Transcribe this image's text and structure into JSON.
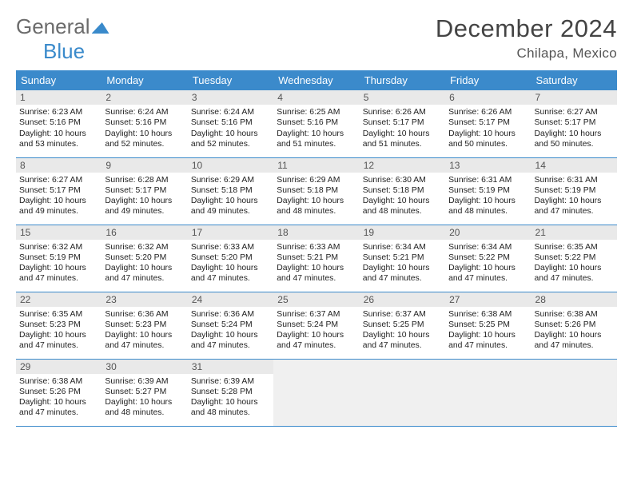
{
  "logo": {
    "line1": "General",
    "line2": "Blue"
  },
  "title": "December 2024",
  "location": "Chilapa, Mexico",
  "colors": {
    "header_bg": "#3b8acb",
    "header_text": "#ffffff",
    "daynum_bg": "#e9e9e9",
    "daynum_text": "#555555",
    "body_text": "#222222",
    "rule": "#3b8acb",
    "logo_gray": "#6b6b6b",
    "logo_blue": "#3a8acb",
    "empty_bg": "#f0f0f0",
    "page_bg": "#ffffff",
    "title_color": "#444444"
  },
  "typography": {
    "month_title_fontsize": 31,
    "location_fontsize": 17,
    "dayheader_fontsize": 13,
    "daynum_fontsize": 12,
    "body_fontsize": 10.4,
    "font_family": "Arial"
  },
  "day_headers": [
    "Sunday",
    "Monday",
    "Tuesday",
    "Wednesday",
    "Thursday",
    "Friday",
    "Saturday"
  ],
  "weeks": [
    [
      {
        "n": "1",
        "sunrise": "6:23 AM",
        "sunset": "5:16 PM",
        "daylight": "10 hours and 53 minutes."
      },
      {
        "n": "2",
        "sunrise": "6:24 AM",
        "sunset": "5:16 PM",
        "daylight": "10 hours and 52 minutes."
      },
      {
        "n": "3",
        "sunrise": "6:24 AM",
        "sunset": "5:16 PM",
        "daylight": "10 hours and 52 minutes."
      },
      {
        "n": "4",
        "sunrise": "6:25 AM",
        "sunset": "5:16 PM",
        "daylight": "10 hours and 51 minutes."
      },
      {
        "n": "5",
        "sunrise": "6:26 AM",
        "sunset": "5:17 PM",
        "daylight": "10 hours and 51 minutes."
      },
      {
        "n": "6",
        "sunrise": "6:26 AM",
        "sunset": "5:17 PM",
        "daylight": "10 hours and 50 minutes."
      },
      {
        "n": "7",
        "sunrise": "6:27 AM",
        "sunset": "5:17 PM",
        "daylight": "10 hours and 50 minutes."
      }
    ],
    [
      {
        "n": "8",
        "sunrise": "6:27 AM",
        "sunset": "5:17 PM",
        "daylight": "10 hours and 49 minutes."
      },
      {
        "n": "9",
        "sunrise": "6:28 AM",
        "sunset": "5:17 PM",
        "daylight": "10 hours and 49 minutes."
      },
      {
        "n": "10",
        "sunrise": "6:29 AM",
        "sunset": "5:18 PM",
        "daylight": "10 hours and 49 minutes."
      },
      {
        "n": "11",
        "sunrise": "6:29 AM",
        "sunset": "5:18 PM",
        "daylight": "10 hours and 48 minutes."
      },
      {
        "n": "12",
        "sunrise": "6:30 AM",
        "sunset": "5:18 PM",
        "daylight": "10 hours and 48 minutes."
      },
      {
        "n": "13",
        "sunrise": "6:31 AM",
        "sunset": "5:19 PM",
        "daylight": "10 hours and 48 minutes."
      },
      {
        "n": "14",
        "sunrise": "6:31 AM",
        "sunset": "5:19 PM",
        "daylight": "10 hours and 47 minutes."
      }
    ],
    [
      {
        "n": "15",
        "sunrise": "6:32 AM",
        "sunset": "5:19 PM",
        "daylight": "10 hours and 47 minutes."
      },
      {
        "n": "16",
        "sunrise": "6:32 AM",
        "sunset": "5:20 PM",
        "daylight": "10 hours and 47 minutes."
      },
      {
        "n": "17",
        "sunrise": "6:33 AM",
        "sunset": "5:20 PM",
        "daylight": "10 hours and 47 minutes."
      },
      {
        "n": "18",
        "sunrise": "6:33 AM",
        "sunset": "5:21 PM",
        "daylight": "10 hours and 47 minutes."
      },
      {
        "n": "19",
        "sunrise": "6:34 AM",
        "sunset": "5:21 PM",
        "daylight": "10 hours and 47 minutes."
      },
      {
        "n": "20",
        "sunrise": "6:34 AM",
        "sunset": "5:22 PM",
        "daylight": "10 hours and 47 minutes."
      },
      {
        "n": "21",
        "sunrise": "6:35 AM",
        "sunset": "5:22 PM",
        "daylight": "10 hours and 47 minutes."
      }
    ],
    [
      {
        "n": "22",
        "sunrise": "6:35 AM",
        "sunset": "5:23 PM",
        "daylight": "10 hours and 47 minutes."
      },
      {
        "n": "23",
        "sunrise": "6:36 AM",
        "sunset": "5:23 PM",
        "daylight": "10 hours and 47 minutes."
      },
      {
        "n": "24",
        "sunrise": "6:36 AM",
        "sunset": "5:24 PM",
        "daylight": "10 hours and 47 minutes."
      },
      {
        "n": "25",
        "sunrise": "6:37 AM",
        "sunset": "5:24 PM",
        "daylight": "10 hours and 47 minutes."
      },
      {
        "n": "26",
        "sunrise": "6:37 AM",
        "sunset": "5:25 PM",
        "daylight": "10 hours and 47 minutes."
      },
      {
        "n": "27",
        "sunrise": "6:38 AM",
        "sunset": "5:25 PM",
        "daylight": "10 hours and 47 minutes."
      },
      {
        "n": "28",
        "sunrise": "6:38 AM",
        "sunset": "5:26 PM",
        "daylight": "10 hours and 47 minutes."
      }
    ],
    [
      {
        "n": "29",
        "sunrise": "6:38 AM",
        "sunset": "5:26 PM",
        "daylight": "10 hours and 47 minutes."
      },
      {
        "n": "30",
        "sunrise": "6:39 AM",
        "sunset": "5:27 PM",
        "daylight": "10 hours and 48 minutes."
      },
      {
        "n": "31",
        "sunrise": "6:39 AM",
        "sunset": "5:28 PM",
        "daylight": "10 hours and 48 minutes."
      },
      null,
      null,
      null,
      null
    ]
  ],
  "labels": {
    "sunrise_prefix": "Sunrise: ",
    "sunset_prefix": "Sunset: ",
    "daylight_prefix": "Daylight: "
  }
}
